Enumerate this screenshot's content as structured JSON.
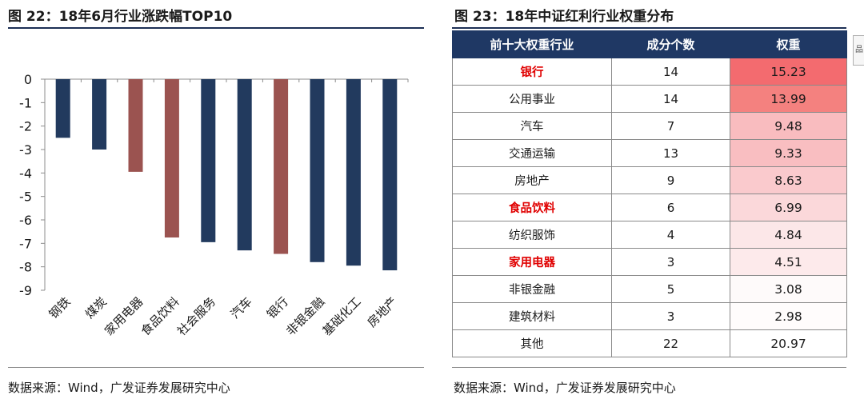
{
  "left_panel": {
    "title": "图  22：18年6月行业涨跌幅TOP10",
    "source": "数据来源：Wind，广发证券发展研究中心"
  },
  "right_panel": {
    "title": "图  23：18年中证红利行业权重分布",
    "source": "数据来源：Wind，广发证券发展研究中心",
    "headers": [
      "前十大权重行业",
      "成分个数",
      "权重"
    ],
    "rows": [
      {
        "industry": "银行",
        "count": "14",
        "weight": "15.23",
        "highlight": true
      },
      {
        "industry": "公用事业",
        "count": "14",
        "weight": "13.99",
        "highlight": false
      },
      {
        "industry": "汽车",
        "count": "7",
        "weight": "9.48",
        "highlight": false
      },
      {
        "industry": "交通运输",
        "count": "13",
        "weight": "9.33",
        "highlight": false
      },
      {
        "industry": "房地产",
        "count": "9",
        "weight": "8.63",
        "highlight": false
      },
      {
        "industry": "食品饮料",
        "count": "6",
        "weight": "6.99",
        "highlight": true
      },
      {
        "industry": "纺织服饰",
        "count": "4",
        "weight": "4.84",
        "highlight": false
      },
      {
        "industry": "家用电器",
        "count": "3",
        "weight": "4.51",
        "highlight": true
      },
      {
        "industry": "非银金融",
        "count": "5",
        "weight": "3.08",
        "highlight": false
      },
      {
        "industry": "建筑材料",
        "count": "3",
        "weight": "2.98",
        "highlight": false
      },
      {
        "industry": "其他",
        "count": "22",
        "weight": "20.97",
        "highlight": false
      }
    ],
    "heat_colors": {
      "0": "#f36b6f",
      "1": "#f4817f",
      "2": "#f9bcbf",
      "3": "#f9bec1",
      "4": "#facacd",
      "5": "#fbd8da",
      "6": "#fce7e8",
      "7": "#fdeaeb",
      "8": "#fefafa",
      "9": "#fffcfc",
      "10": "#ffffff"
    }
  },
  "chart_data": {
    "type": "bar",
    "title": "18年6月行业涨跌幅TOP10",
    "categories": [
      "钢铁",
      "煤炭",
      "家用电器",
      "食品饮料",
      "社会服务",
      "汽车",
      "银行",
      "非银金融",
      "基础化工",
      "房地产"
    ],
    "values": [
      -2.5,
      -3.0,
      -3.95,
      -6.75,
      -6.95,
      -7.3,
      -7.45,
      -7.8,
      -7.95,
      -8.15
    ],
    "bar_colors": [
      "#223a5e",
      "#223a5e",
      "#9b5350",
      "#9b5350",
      "#223a5e",
      "#223a5e",
      "#9b5350",
      "#223a5e",
      "#223a5e",
      "#223a5e"
    ],
    "ylim": [
      -9,
      0
    ],
    "yticks": [
      "0",
      "-1",
      "-2",
      "-3",
      "-4",
      "-5",
      "-6",
      "-7",
      "-8",
      "-9"
    ],
    "xlabel": "",
    "ylabel": "",
    "grid": false,
    "legend": "none"
  },
  "side_icon": "page-tab-icon"
}
